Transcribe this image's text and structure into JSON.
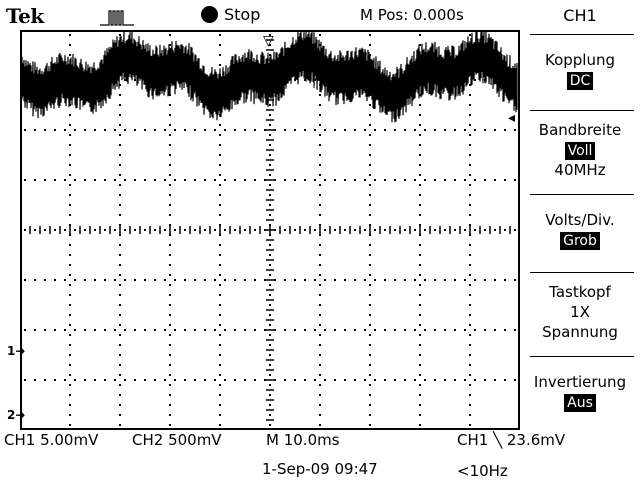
{
  "header": {
    "brand": "Tek",
    "run_state": "Stop",
    "position_readout": "M Pos: 0.000s"
  },
  "menu": {
    "title": "CH1",
    "items": [
      {
        "label": "Kopplung",
        "value": "DC",
        "sub": ""
      },
      {
        "label": "Bandbreite",
        "value": "Voll",
        "sub": "40MHz"
      },
      {
        "label": "Volts/Div.",
        "value": "Grob",
        "sub": ""
      },
      {
        "label": "Tastkopf",
        "value": "",
        "sub": "1X",
        "sub2": "Spannung"
      },
      {
        "label": "Invertierung",
        "value": "Aus",
        "sub": ""
      }
    ]
  },
  "markers": {
    "ch1_ground": "1",
    "ch2_ground": "2"
  },
  "readout": {
    "ch1_scale": "CH1  5.00mV",
    "ch2_scale": "CH2  500mV",
    "timebase": "M 10.0ms",
    "trigger": "CH1 ╲ 23.6mV",
    "datetime": "1-Sep-09 09:47",
    "frequency": "<10Hz"
  },
  "colors": {
    "background": "#ffffff",
    "trace": "#000000"
  }
}
